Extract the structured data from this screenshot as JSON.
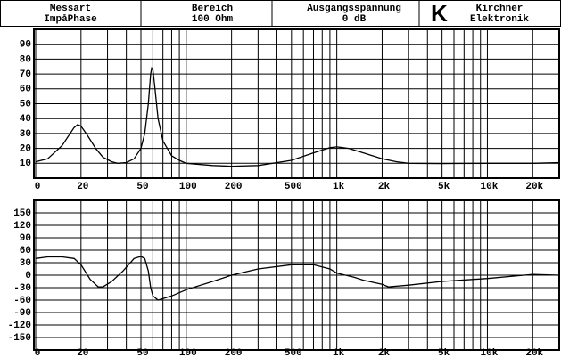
{
  "header": {
    "cells": [
      {
        "title": "Messart",
        "value": "ImpåPhase"
      },
      {
        "title": "Bereich",
        "value": "100 Ohm"
      },
      {
        "title": "Ausgangsspannung",
        "value": "0 dB"
      }
    ],
    "logo": "K",
    "company": [
      "Kirchner",
      "Elektronik"
    ]
  },
  "chart_data": [
    {
      "type": "line",
      "log_x": true,
      "grid": true,
      "color": "#000000",
      "x": [
        10,
        12,
        15,
        18,
        19,
        20,
        22,
        25,
        28,
        32,
        35,
        40,
        45,
        50,
        53,
        56,
        58,
        59,
        60,
        62,
        65,
        70,
        80,
        90,
        100,
        150,
        200,
        300,
        500,
        700,
        900,
        1000,
        1200,
        1500,
        2000,
        2500,
        3000,
        5000,
        10000,
        20000,
        30000
      ],
      "values": [
        11,
        13,
        22,
        34,
        36,
        35,
        29,
        20,
        14,
        11,
        10,
        10.5,
        13,
        20,
        30,
        50,
        70,
        74,
        73,
        60,
        40,
        25,
        15,
        12,
        10,
        8.5,
        8,
        8.5,
        12,
        17,
        20.5,
        21,
        20,
        17,
        13,
        11,
        10,
        9.8,
        10,
        10,
        10.5
      ],
      "xlim": [
        10,
        30000
      ],
      "ylim": [
        0,
        100
      ],
      "xticks": [
        {
          "value": 10,
          "label": "0"
        },
        20,
        50,
        100,
        200,
        500,
        {
          "value": 1000,
          "label": "1k"
        },
        {
          "value": 2000,
          "label": "2k"
        },
        {
          "value": 5000,
          "label": "5k"
        },
        {
          "value": 10000,
          "label": "10k"
        },
        {
          "value": 20000,
          "label": "20k"
        }
      ],
      "xminor_ticks": [
        30,
        40,
        60,
        70,
        80,
        90,
        300,
        400,
        600,
        700,
        800,
        900,
        3000,
        4000,
        6000,
        7000,
        8000,
        9000
      ],
      "yticks": [
        10,
        20,
        30,
        40,
        50,
        60,
        70,
        80,
        90
      ]
    },
    {
      "type": "line",
      "log_x": true,
      "grid": true,
      "color": "#000000",
      "x": [
        10,
        12,
        15,
        18,
        20,
        23,
        26,
        28,
        32,
        38,
        45,
        50,
        53,
        56,
        58,
        60,
        65,
        80,
        100,
        150,
        200,
        300,
        500,
        700,
        900,
        1000,
        1300,
        1500,
        2000,
        2200,
        3000,
        5000,
        10000,
        20000,
        30000
      ],
      "values": [
        40,
        44,
        44,
        40,
        25,
        -10,
        -28,
        -28,
        -15,
        10,
        40,
        45,
        40,
        10,
        -30,
        -50,
        -60,
        -50,
        -35,
        -15,
        0,
        15,
        25,
        25,
        15,
        5,
        -5,
        -12,
        -22,
        -28,
        -24,
        -15,
        -8,
        2,
        0
      ],
      "xlim": [
        10,
        30000
      ],
      "ylim": [
        -180,
        180
      ],
      "xticks": [
        {
          "value": 10,
          "label": "0"
        },
        20,
        50,
        100,
        200,
        500,
        {
          "value": 1000,
          "label": "1k"
        },
        {
          "value": 2000,
          "label": "2k"
        },
        {
          "value": 5000,
          "label": "5k"
        },
        {
          "value": 10000,
          "label": "10k"
        },
        {
          "value": 20000,
          "label": "20k"
        }
      ],
      "xminor_ticks": [
        30,
        40,
        60,
        70,
        80,
        90,
        300,
        400,
        600,
        700,
        800,
        900,
        3000,
        4000,
        6000,
        7000,
        8000,
        9000
      ],
      "yticks": [
        -150,
        -120,
        -90,
        -60,
        -30,
        0,
        30,
        60,
        90,
        120,
        150
      ]
    }
  ]
}
